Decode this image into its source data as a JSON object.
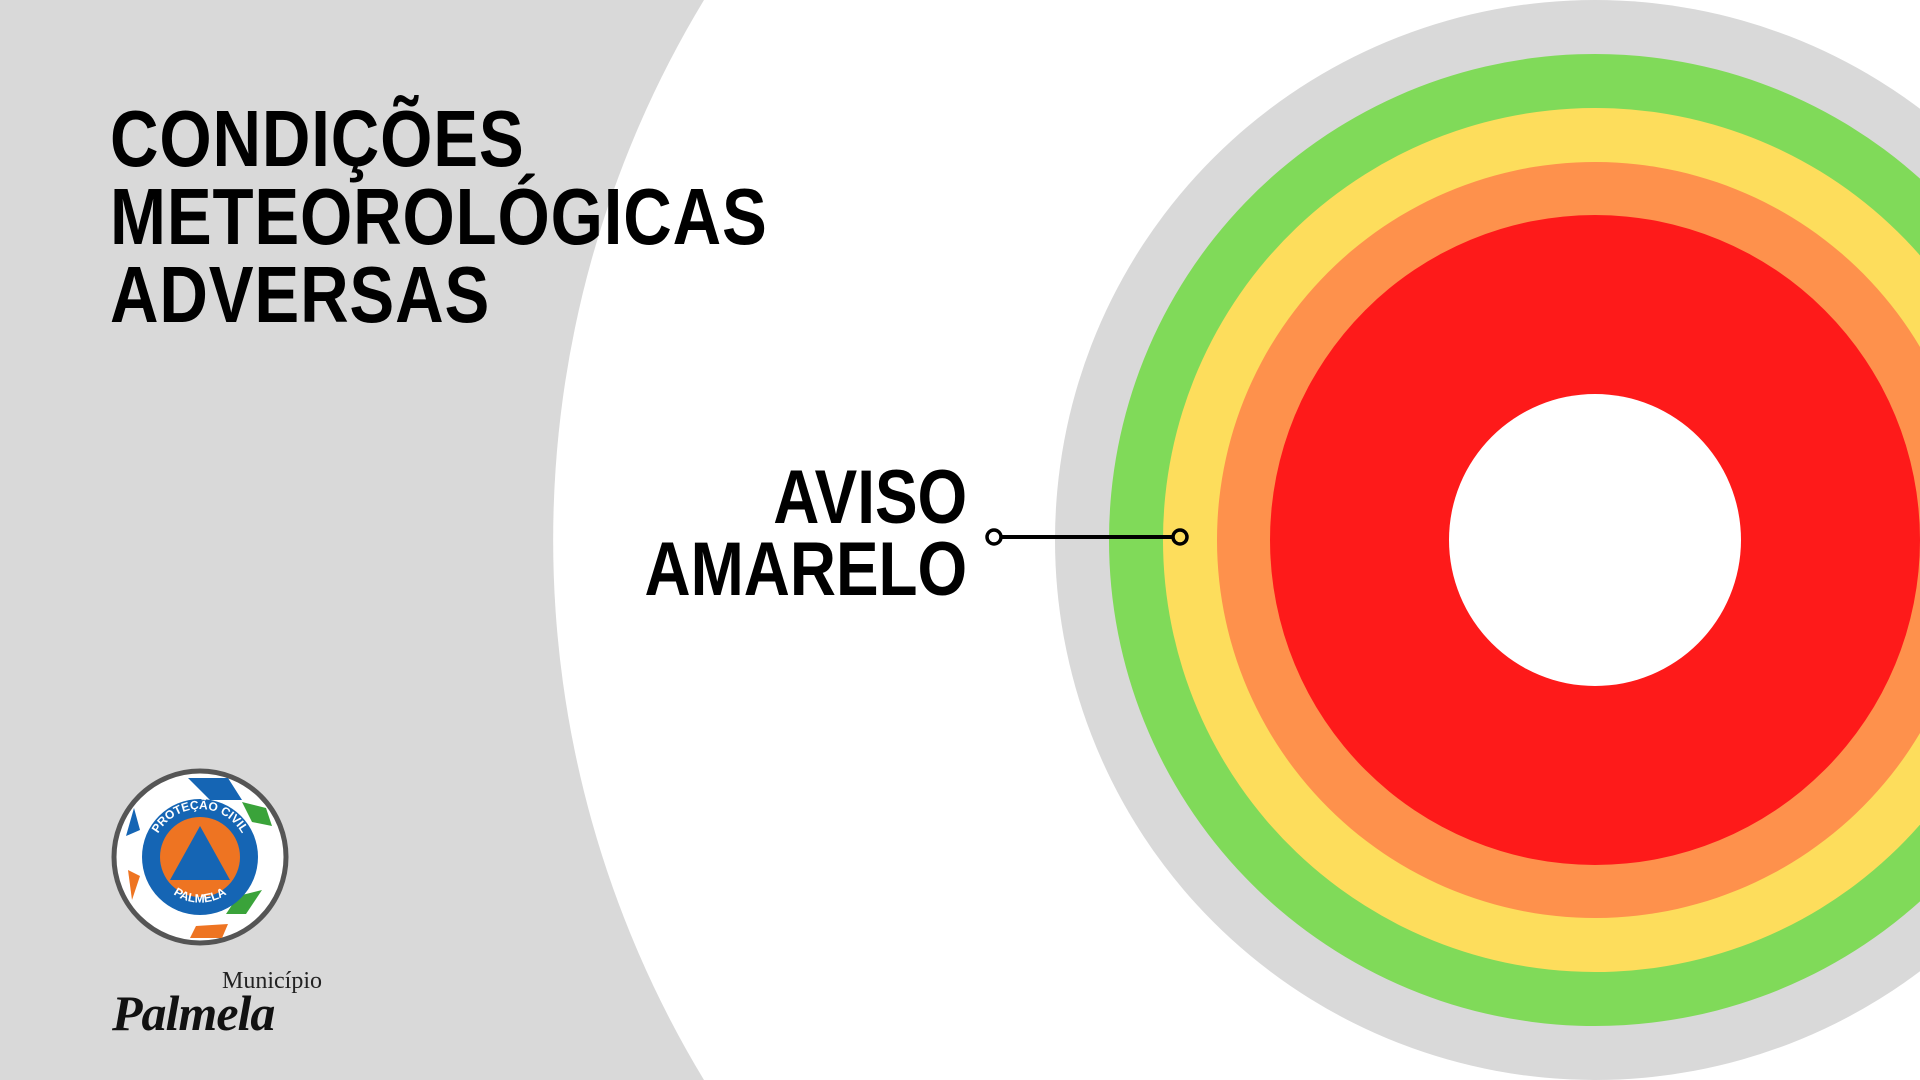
{
  "title": {
    "lines": [
      "CONDIÇÕES",
      "METEOROLÓGICAS",
      "ADVERSAS"
    ]
  },
  "warning": {
    "lines": [
      "AVISO",
      "AMARELO"
    ],
    "level": "yellow"
  },
  "rings": {
    "colors": [
      "#d9d9d9",
      "#80da59",
      "#fddd5c",
      "#fe914c",
      "#fe1a1a",
      "#ffffff"
    ]
  },
  "logo": {
    "ring_text_top": "PROTEÇÃO CIVIL",
    "ring_text_bottom": "PALMELA",
    "municipality_small": "Município",
    "municipality_name": "Palmela"
  }
}
